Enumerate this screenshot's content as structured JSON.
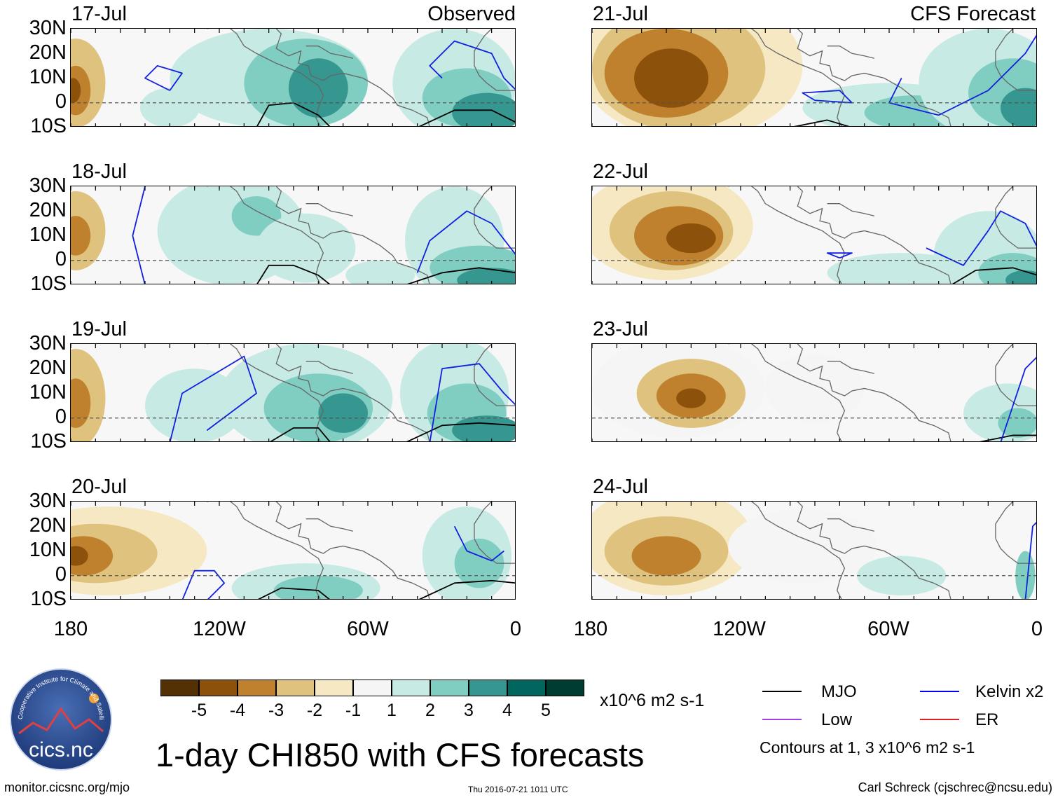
{
  "panels_left": [
    {
      "date": "17-Jul",
      "tag": "Observed"
    },
    {
      "date": "18-Jul",
      "tag": ""
    },
    {
      "date": "19-Jul",
      "tag": ""
    },
    {
      "date": "20-Jul",
      "tag": ""
    }
  ],
  "panels_right": [
    {
      "date": "21-Jul",
      "tag": "CFS Forecast"
    },
    {
      "date": "22-Jul",
      "tag": ""
    },
    {
      "date": "23-Jul",
      "tag": ""
    },
    {
      "date": "24-Jul",
      "tag": ""
    }
  ],
  "lat_labels": [
    "30N",
    "20N",
    "10N",
    "0",
    "10S"
  ],
  "lon_labels": [
    "180",
    "120W",
    "60W",
    "0"
  ],
  "colorbar": {
    "colors": [
      "#543005",
      "#8c510a",
      "#bf812d",
      "#dfc27d",
      "#f6e8c3",
      "#f5f5f5",
      "#c7eae5",
      "#80cdc1",
      "#35978f",
      "#01665e",
      "#003c30"
    ],
    "labels": [
      "-5",
      "-4",
      "-3",
      "-2",
      "-1",
      "1",
      "2",
      "3",
      "4",
      "5"
    ],
    "units": "x10^6 m2 s-1"
  },
  "legend": [
    {
      "name": "MJO",
      "color": "#000000"
    },
    {
      "name": "Kelvin x2",
      "color": "#0000ff"
    },
    {
      "name": "Low",
      "color": "#a040e0"
    },
    {
      "name": "ER",
      "color": "#e02020"
    }
  ],
  "contour_note": "Contours at 1, 3 x10^6 m2 s-1",
  "title": "1-day CHI850 with CFS forecasts",
  "footer": {
    "site": "monitor.cicsnc.org/mjo",
    "timestamp": "Thu 2016-07-21 1011 UTC",
    "author": "Carl Schreck (cjschrec@ncsu.edu)"
  },
  "logo": {
    "text": "cics.nc",
    "ring": "Cooperative Institute for Climate and Satellites"
  },
  "chart_data": {
    "type": "heatmap",
    "title": "1-day CHI850 with CFS forecasts",
    "x_range": [
      -180,
      0
    ],
    "y_range": [
      -10,
      30
    ],
    "panels": [
      {
        "date": "17-Jul",
        "source": "Observed"
      },
      {
        "date": "18-Jul",
        "source": "Observed"
      },
      {
        "date": "19-Jul",
        "source": "Observed"
      },
      {
        "date": "20-Jul",
        "source": "Observed"
      },
      {
        "date": "21-Jul",
        "source": "CFS Forecast"
      },
      {
        "date": "22-Jul",
        "source": "CFS Forecast"
      },
      {
        "date": "23-Jul",
        "source": "CFS Forecast"
      },
      {
        "date": "24-Jul",
        "source": "CFS Forecast"
      }
    ]
  }
}
